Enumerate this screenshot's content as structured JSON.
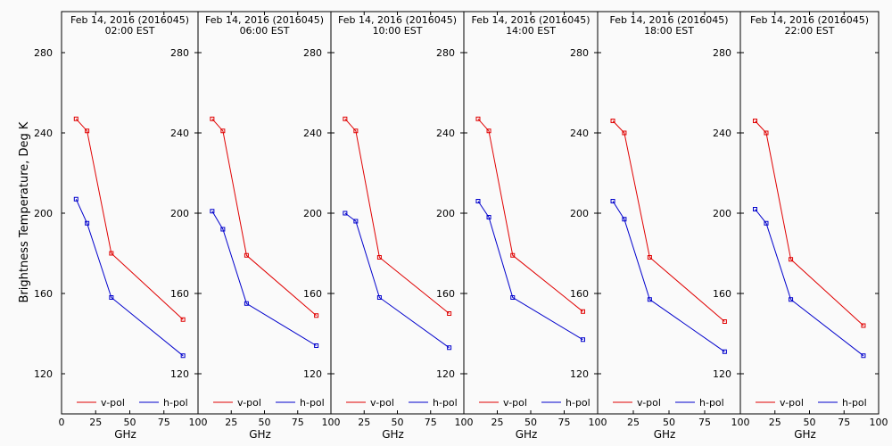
{
  "figure": {
    "ylabel": "Brightness Temperature, Deg K"
  },
  "chart_data": [
    {
      "type": "line",
      "title": "Feb 14, 2016 (2016045)",
      "subtitle": "02:00 EST",
      "xlabel": "GHz",
      "xlim": [
        0,
        100
      ],
      "ylim": [
        100,
        295
      ],
      "x_ticks": [
        0,
        25,
        50,
        75,
        100
      ],
      "x_tick_labels": [
        "0",
        "25",
        "50",
        "75",
        "100"
      ],
      "y_ticks": [
        120,
        160,
        200,
        240,
        280
      ],
      "y_tick_labels": [
        "120",
        "160",
        "200",
        "240",
        "280"
      ],
      "legend_position": "bottom",
      "series": [
        {
          "name": "v-pol",
          "color": "#e00000",
          "x": [
            10.65,
            18.7,
            36.5,
            89.0
          ],
          "y": [
            247,
            241,
            180,
            147
          ]
        },
        {
          "name": "h-pol",
          "color": "#0000cc",
          "x": [
            10.65,
            18.7,
            36.5,
            89.0
          ],
          "y": [
            207,
            195,
            158,
            129
          ]
        }
      ]
    },
    {
      "type": "line",
      "title": "Feb 14, 2016 (2016045)",
      "subtitle": "06:00 EST",
      "xlabel": "GHz",
      "xlim": [
        0,
        100
      ],
      "ylim": [
        100,
        295
      ],
      "x_ticks": [
        0,
        25,
        50,
        75,
        100
      ],
      "x_tick_labels": [
        "",
        "25",
        "50",
        "75",
        "100"
      ],
      "y_ticks": [
        120,
        160,
        200,
        240,
        280
      ],
      "y_tick_labels": [
        "120",
        "160",
        "200",
        "240",
        "280"
      ],
      "legend_position": "bottom",
      "series": [
        {
          "name": "v-pol",
          "color": "#e00000",
          "x": [
            10.65,
            18.7,
            36.5,
            89.0
          ],
          "y": [
            247,
            241,
            179,
            149
          ]
        },
        {
          "name": "h-pol",
          "color": "#0000cc",
          "x": [
            10.65,
            18.7,
            36.5,
            89.0
          ],
          "y": [
            201,
            192,
            155,
            134
          ]
        }
      ]
    },
    {
      "type": "line",
      "title": "Feb 14, 2016 (2016045)",
      "subtitle": "10:00 EST",
      "xlabel": "GHz",
      "xlim": [
        0,
        100
      ],
      "ylim": [
        100,
        295
      ],
      "x_ticks": [
        0,
        25,
        50,
        75,
        100
      ],
      "x_tick_labels": [
        "",
        "25",
        "50",
        "75",
        "100"
      ],
      "y_ticks": [
        120,
        160,
        200,
        240,
        280
      ],
      "y_tick_labels": [
        "120",
        "160",
        "200",
        "240",
        "280"
      ],
      "legend_position": "bottom",
      "series": [
        {
          "name": "v-pol",
          "color": "#e00000",
          "x": [
            10.65,
            18.7,
            36.5,
            89.0
          ],
          "y": [
            247,
            241,
            178,
            150
          ]
        },
        {
          "name": "h-pol",
          "color": "#0000cc",
          "x": [
            10.65,
            18.7,
            36.5,
            89.0
          ],
          "y": [
            200,
            196,
            158,
            133
          ]
        }
      ]
    },
    {
      "type": "line",
      "title": "Feb 14, 2016 (2016045)",
      "subtitle": "14:00 EST",
      "xlabel": "GHz",
      "xlim": [
        0,
        100
      ],
      "ylim": [
        100,
        295
      ],
      "x_ticks": [
        0,
        25,
        50,
        75,
        100
      ],
      "x_tick_labels": [
        "",
        "25",
        "50",
        "75",
        "100"
      ],
      "y_ticks": [
        120,
        160,
        200,
        240,
        280
      ],
      "y_tick_labels": [
        "120",
        "160",
        "200",
        "240",
        "280"
      ],
      "legend_position": "bottom",
      "series": [
        {
          "name": "v-pol",
          "color": "#e00000",
          "x": [
            10.65,
            18.7,
            36.5,
            89.0
          ],
          "y": [
            247,
            241,
            179,
            151
          ]
        },
        {
          "name": "h-pol",
          "color": "#0000cc",
          "x": [
            10.65,
            18.7,
            36.5,
            89.0
          ],
          "y": [
            206,
            198,
            158,
            137
          ]
        }
      ]
    },
    {
      "type": "line",
      "title": "Feb 14, 2016 (2016045)",
      "subtitle": "18:00 EST",
      "xlabel": "GHz",
      "xlim": [
        0,
        100
      ],
      "ylim": [
        100,
        295
      ],
      "x_ticks": [
        0,
        25,
        50,
        75,
        100
      ],
      "x_tick_labels": [
        "",
        "25",
        "50",
        "75",
        "100"
      ],
      "y_ticks": [
        120,
        160,
        200,
        240,
        280
      ],
      "y_tick_labels": [
        "120",
        "160",
        "200",
        "240",
        "280"
      ],
      "legend_position": "bottom",
      "series": [
        {
          "name": "v-pol",
          "color": "#e00000",
          "x": [
            10.65,
            18.7,
            36.5,
            89.0
          ],
          "y": [
            246,
            240,
            178,
            146
          ]
        },
        {
          "name": "h-pol",
          "color": "#0000cc",
          "x": [
            10.65,
            18.7,
            36.5,
            89.0
          ],
          "y": [
            206,
            197,
            157,
            131
          ]
        }
      ]
    },
    {
      "type": "line",
      "title": "Feb 14, 2016 (2016045)",
      "subtitle": "22:00 EST",
      "xlabel": "GHz",
      "xlim": [
        0,
        100
      ],
      "ylim": [
        100,
        295
      ],
      "x_ticks": [
        0,
        25,
        50,
        75,
        100
      ],
      "x_tick_labels": [
        "",
        "25",
        "50",
        "75",
        "100"
      ],
      "y_ticks": [
        120,
        160,
        200,
        240,
        280
      ],
      "y_tick_labels": [
        "120",
        "160",
        "200",
        "240",
        "280"
      ],
      "legend_position": "bottom",
      "series": [
        {
          "name": "v-pol",
          "color": "#e00000",
          "x": [
            10.65,
            18.7,
            36.5,
            89.0
          ],
          "y": [
            246,
            240,
            177,
            144
          ]
        },
        {
          "name": "h-pol",
          "color": "#0000cc",
          "x": [
            10.65,
            18.7,
            36.5,
            89.0
          ],
          "y": [
            202,
            195,
            157,
            129
          ]
        }
      ]
    }
  ]
}
